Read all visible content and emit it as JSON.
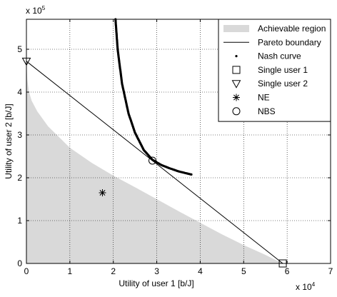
{
  "chart_data": {
    "type": "scatter",
    "x_multiplier_label": "x 10",
    "x_multiplier_exp": "4",
    "y_multiplier_label": "x 10",
    "y_multiplier_exp": "5",
    "xlabel": "Utility of user 1 [b/J]",
    "ylabel": "Utility of user 2 [b/J]",
    "xlim": [
      0,
      7
    ],
    "ylim": [
      0,
      5.7
    ],
    "xticks": [
      0,
      1,
      2,
      3,
      4,
      5,
      6,
      7
    ],
    "yticks": [
      0,
      1,
      2,
      3,
      4,
      5
    ],
    "grid": true,
    "legend_position": "top-right",
    "legend": [
      {
        "label": "Achievable region",
        "marker": "patch"
      },
      {
        "label": "Pareto boundary",
        "marker": "line"
      },
      {
        "label": "Nash curve",
        "marker": "dot"
      },
      {
        "label": "Single user 1",
        "marker": "square"
      },
      {
        "label": "Single user 2",
        "marker": "triangle-down"
      },
      {
        "label": "NE",
        "marker": "asterisk"
      },
      {
        "label": "NBS",
        "marker": "circle"
      }
    ],
    "achievable_region": {
      "color": "#d9d9d9",
      "boundary": [
        [
          0,
          4.72
        ],
        [
          0.02,
          4.3
        ],
        [
          0.06,
          4.0
        ],
        [
          0.12,
          3.8
        ],
        [
          0.25,
          3.55
        ],
        [
          0.5,
          3.2
        ],
        [
          1.0,
          2.7
        ],
        [
          1.5,
          2.35
        ],
        [
          2.0,
          2.05
        ],
        [
          2.5,
          1.78
        ],
        [
          3.0,
          1.5
        ],
        [
          3.5,
          1.22
        ],
        [
          4.0,
          0.95
        ],
        [
          4.5,
          0.68
        ],
        [
          5.0,
          0.43
        ],
        [
          5.5,
          0.2
        ],
        [
          5.9,
          0
        ]
      ]
    },
    "pareto_boundary": [
      [
        0,
        4.72
      ],
      [
        5.9,
        0
      ]
    ],
    "nash_curve": [
      [
        2.05,
        5.7
      ],
      [
        2.1,
        5.0
      ],
      [
        2.2,
        4.2
      ],
      [
        2.35,
        3.5
      ],
      [
        2.5,
        3.05
      ],
      [
        2.7,
        2.65
      ],
      [
        2.9,
        2.42
      ],
      [
        3.1,
        2.3
      ],
      [
        3.3,
        2.22
      ],
      [
        3.5,
        2.15
      ],
      [
        3.7,
        2.1
      ],
      [
        3.82,
        2.07
      ]
    ],
    "single_user_1": [
      5.9,
      0
    ],
    "single_user_2": [
      0,
      4.72
    ],
    "ne": [
      1.75,
      1.65
    ],
    "nbs": [
      2.9,
      2.4
    ]
  }
}
